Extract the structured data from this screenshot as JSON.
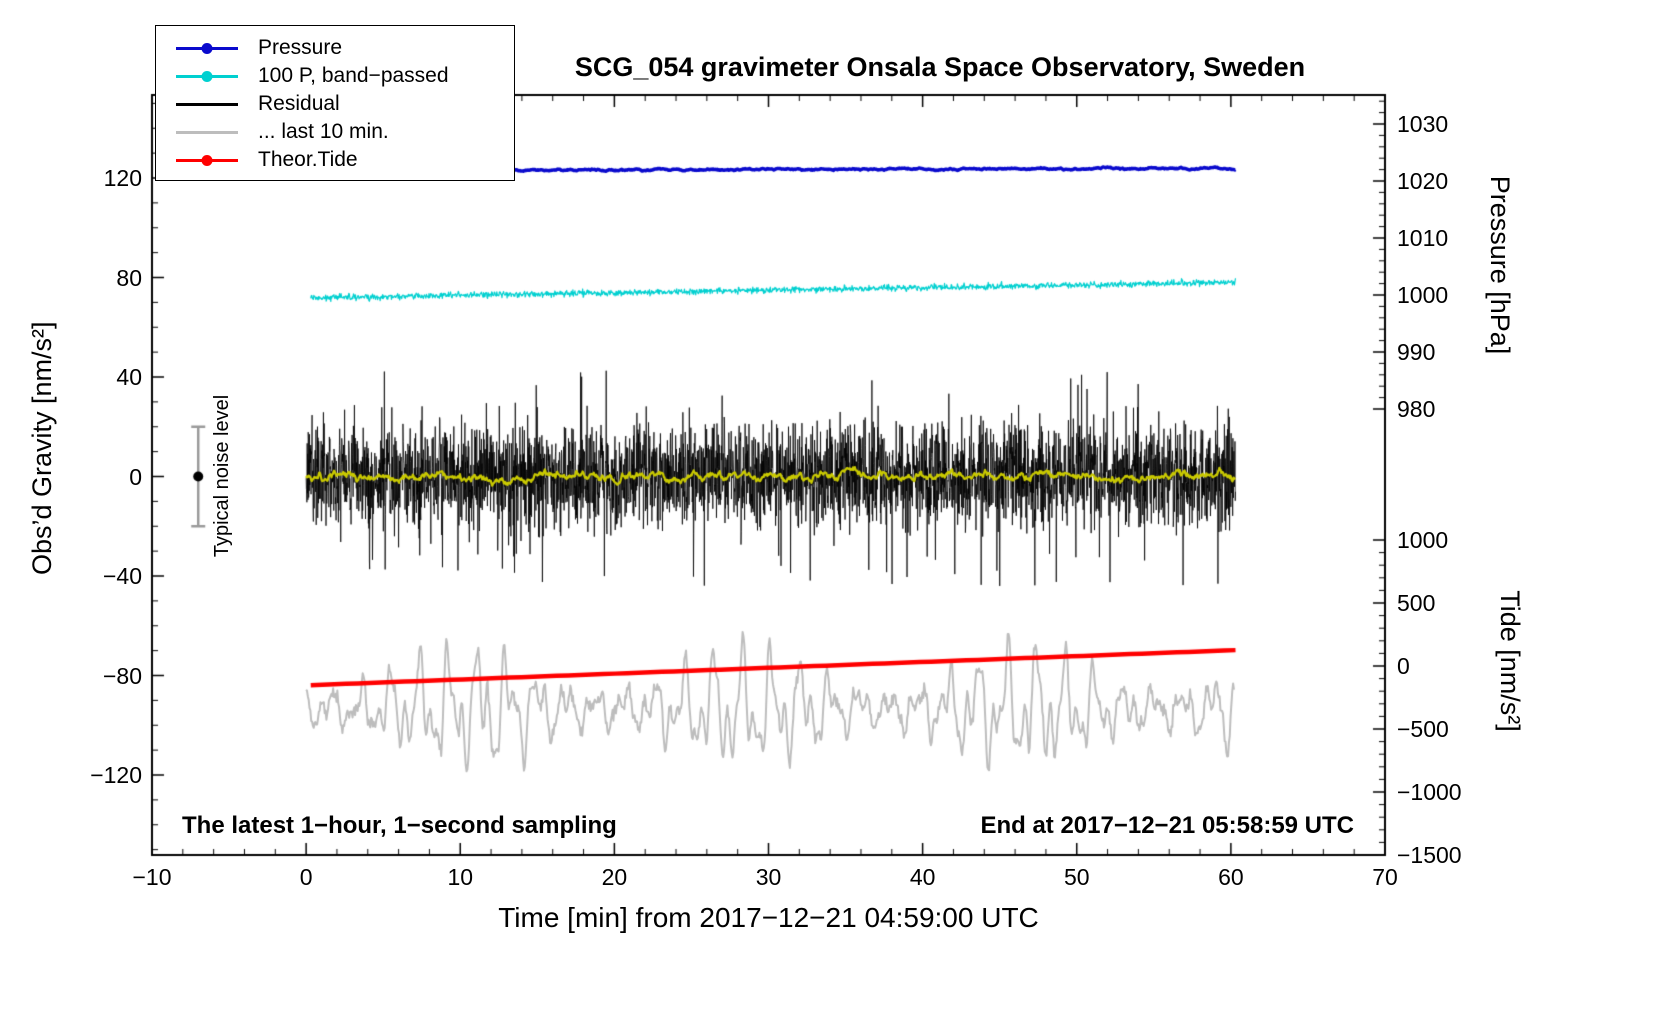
{
  "title": "SCG_054 gravimeter Onsala Space Observatory, Sweden",
  "xlabel": "Time [min] from 2017−12−21 04:59:00 UTC",
  "ylabel_left": "Obs’d Gravity [nm/s²]",
  "ylabel_pressure": "Pressure [hPa]",
  "ylabel_tide": "Tide [nm/s²]",
  "annotation_sampling": "The latest 1−hour, 1−second sampling",
  "annotation_end": "End at 2017−12−21 05:58:59 UTC",
  "noise_label": "Typical noise level",
  "legend": [
    {
      "label": "Pressure",
      "color": "#0a0acd",
      "dot": true
    },
    {
      "label": "100 P, band−passed",
      "color": "#00d0d0",
      "dot": true
    },
    {
      "label": "Residual",
      "color": "#000000",
      "dot": false
    },
    {
      "label": "... last 10 min.",
      "color": "#bdbdbd",
      "dot": false
    },
    {
      "label": "Theor.Tide",
      "color": "#ff0000",
      "dot": true
    }
  ],
  "axes": {
    "x": {
      "min": -10,
      "max": 70,
      "minor_step": 2,
      "major_ticks": [
        {
          "v": -10,
          "label": "−10"
        },
        {
          "v": 0,
          "label": "0"
        },
        {
          "v": 10,
          "label": "10"
        },
        {
          "v": 20,
          "label": "20"
        },
        {
          "v": 30,
          "label": "30"
        },
        {
          "v": 40,
          "label": "40"
        },
        {
          "v": 50,
          "label": "50"
        },
        {
          "v": 60,
          "label": "60"
        },
        {
          "v": 70,
          "label": "70"
        }
      ]
    },
    "gravity": {
      "min": -152,
      "max": 153,
      "minor_step": 10,
      "major_ticks": [
        {
          "v": 120,
          "label": "120"
        },
        {
          "v": 80,
          "label": "80"
        },
        {
          "v": 40,
          "label": "40"
        },
        {
          "v": 0,
          "label": "0"
        },
        {
          "v": -40,
          "label": "−40"
        },
        {
          "v": -80,
          "label": "−80"
        },
        {
          "v": -120,
          "label": "−120"
        }
      ]
    },
    "pressure": {
      "min": 980,
      "max": 1034,
      "minor_step": 2,
      "major_ticks": [
        {
          "v": 1030,
          "label": "1030"
        },
        {
          "v": 1020,
          "label": "1020"
        },
        {
          "v": 1010,
          "label": "1010"
        },
        {
          "v": 1000,
          "label": "1000"
        },
        {
          "v": 990,
          "label": "990"
        },
        {
          "v": 980,
          "label": "980"
        }
      ]
    },
    "tide": {
      "min": -1500,
      "max": 1000,
      "minor_step": 100,
      "major_ticks": [
        {
          "v": 1000,
          "label": "1000"
        },
        {
          "v": 500,
          "label": "500"
        },
        {
          "v": 0,
          "label": "0"
        },
        {
          "v": -500,
          "label": "−500"
        },
        {
          "v": -1000,
          "label": "−1000"
        },
        {
          "v": -1500,
          "label": "−1500"
        }
      ]
    }
  },
  "chart_data": {
    "type": "line",
    "title": "SCG_054 gravimeter Onsala Space Observatory, Sweden",
    "x_range_min": [
      0,
      60.3
    ],
    "legend_position": "top-left",
    "grid": false,
    "series": [
      {
        "name": "Pressure",
        "color": "#0a0acd",
        "axis": "pressure",
        "kind": "smooth",
        "x_start": 0,
        "x_end": 60.3,
        "n": 1400,
        "baseline": 1021.85,
        "trend": 0.35,
        "amplitude": 0.3,
        "width": 3.5,
        "approx_reading": "≈1022 hPa, nearly constant"
      },
      {
        "name": "100 P, band−passed",
        "color": "#00d0d0",
        "axis": "gravity",
        "kind": "hf",
        "x_start": 0.3,
        "x_end": 60.3,
        "n": 1800,
        "baseline": 71.8,
        "trend": 6.3,
        "amplitude": 2.4,
        "width": 1.2,
        "approx_reading": "≈72→78 nm/s², small HF noise"
      },
      {
        "name": "Residual",
        "color": "#000000",
        "axis": "gravity",
        "kind": "spiky",
        "x_start": 0,
        "x_end": 60.3,
        "n": 3600,
        "baseline": 0,
        "trend": 0,
        "amplitude": 44,
        "width": 0.8,
        "approx_reading": "0 ± 40 nm/s² noise band"
      },
      {
        "name": "Residual smoothed",
        "color": "#c9c900",
        "axis": "gravity",
        "kind": "smooth",
        "x_start": 0,
        "x_end": 60.3,
        "n": 1500,
        "baseline": 0,
        "trend": 0,
        "amplitude": 3.2,
        "width": 2.2,
        "approx_reading": "0 ± 3 nm/s²"
      },
      {
        "name": "... last 10 min.",
        "color": "#bdbdbd",
        "axis": "tide",
        "kind": "wavy",
        "x_start": 0,
        "x_end": 60.2,
        "n": 1100,
        "baseline": -340,
        "trend": 0,
        "amplitude": 470,
        "width": 2,
        "approx_reading": "−340 ± 450 nm/s², slow waves"
      },
      {
        "name": "Theor.Tide",
        "color": "#ff0000",
        "axis": "tide",
        "kind": "straight",
        "x_start": 0.3,
        "x_end": 60.3,
        "n": 80,
        "baseline": -152,
        "trend": 278,
        "amplitude": 0,
        "width": 4.5,
        "approx_reading": "−150 → +125 nm/s² linear rise"
      }
    ],
    "noise_bar": {
      "x": -7,
      "center": 0,
      "half_range": 20,
      "axis": "gravity",
      "bar_color": "#9a9a9a",
      "dot_color": "#000000"
    }
  }
}
